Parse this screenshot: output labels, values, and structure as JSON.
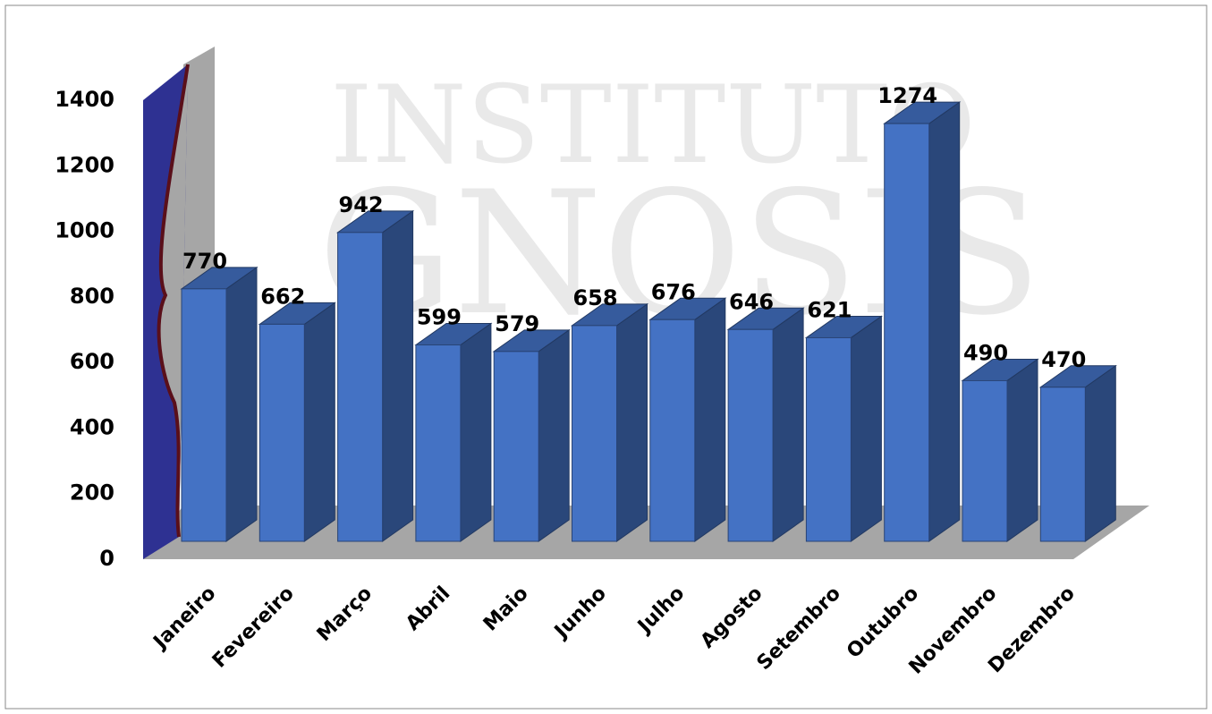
{
  "chart_data": {
    "type": "bar3d",
    "watermark": [
      "INSTITUTO",
      "GNOSIS"
    ],
    "categories": [
      "Janeiro",
      "Fevereiro",
      "Março",
      "Abril",
      "Maio",
      "Junho",
      "Julho",
      "Agosto",
      "Setembro",
      "Outubro",
      "Novembro",
      "Dezembro"
    ],
    "values": [
      770,
      662,
      942,
      599,
      579,
      658,
      676,
      646,
      621,
      1274,
      490,
      470
    ],
    "color": "#4472c4",
    "ylim": [
      0,
      1400
    ],
    "yticks": [
      0,
      200,
      400,
      600,
      800,
      1000,
      1200,
      1400
    ],
    "grid": false
  }
}
